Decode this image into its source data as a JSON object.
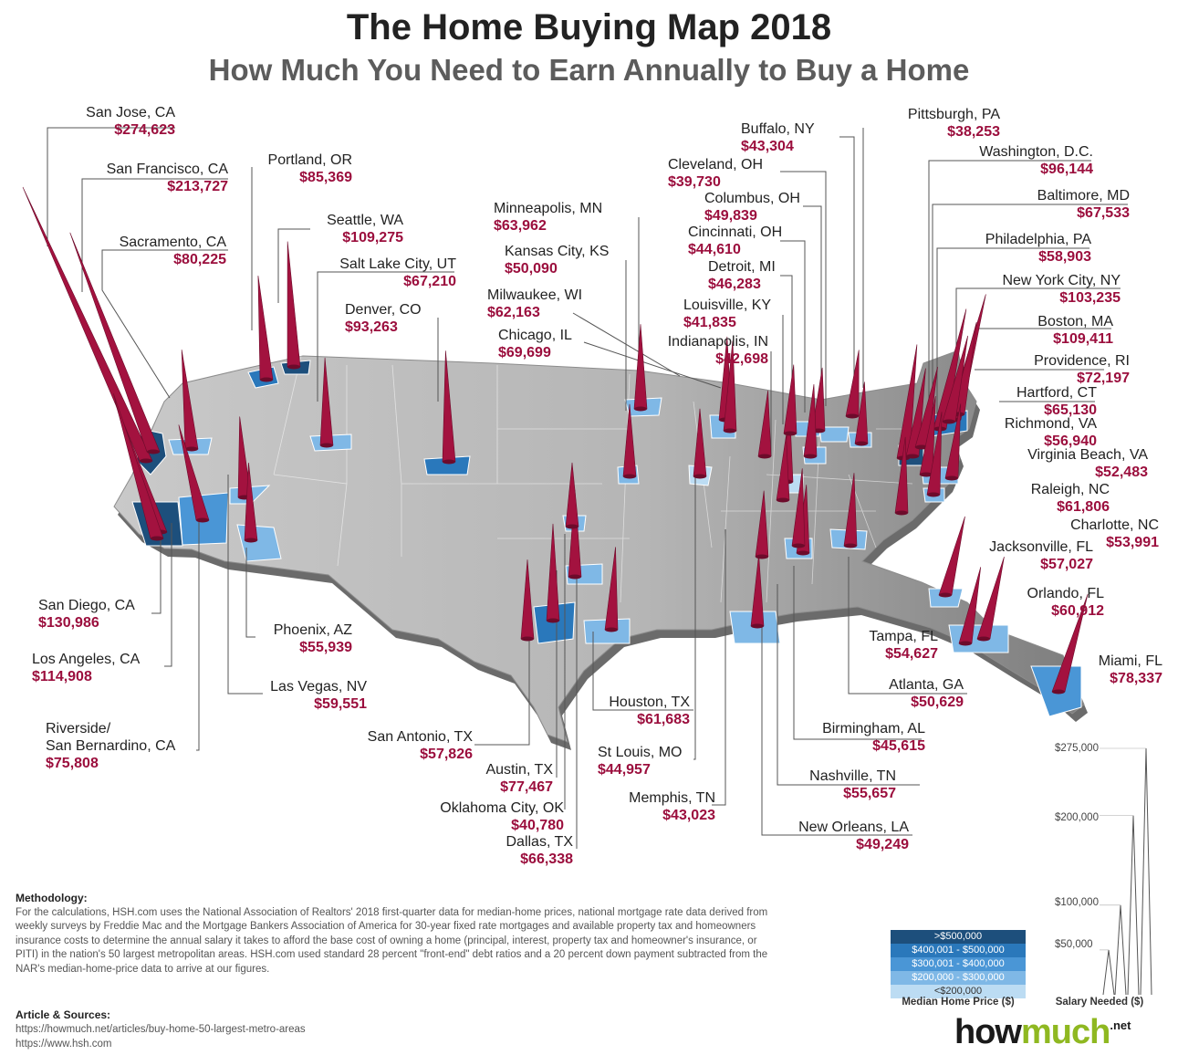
{
  "header": {
    "title": "The Home Buying Map 2018",
    "subtitle": "How Much You Need to Earn Annually to Buy a Home"
  },
  "colors": {
    "salary": "#9b0e3d",
    "spike": "#a3123f",
    "land": "#b9b9b9",
    "tier_over_500k": "#1d4f7c",
    "tier_400k_500k": "#2a78bb",
    "tier_300k_400k": "#4a96d6",
    "tier_200k_300k": "#7fb8e6",
    "tier_under_200k": "#bcdcf3"
  },
  "cities": [
    {
      "name": "San Jose, CA",
      "salary": "$274,623"
    },
    {
      "name": "San Francisco, CA",
      "salary": "$213,727"
    },
    {
      "name": "Sacramento, CA",
      "salary": "$80,225"
    },
    {
      "name": "Portland, OR",
      "salary": "$85,369"
    },
    {
      "name": "Seattle, WA",
      "salary": "$109,275"
    },
    {
      "name": "Salt Lake City, UT",
      "salary": "$67,210"
    },
    {
      "name": "Denver, CO",
      "salary": "$93,263"
    },
    {
      "name": "Minneapolis, MN",
      "salary": "$63,962"
    },
    {
      "name": "Kansas City, KS",
      "salary": "$50,090"
    },
    {
      "name": "Milwaukee, WI",
      "salary": "$62,163"
    },
    {
      "name": "Chicago, IL",
      "salary": "$69,699"
    },
    {
      "name": "Buffalo, NY",
      "salary": "$43,304"
    },
    {
      "name": "Cleveland, OH",
      "salary": "$39,730"
    },
    {
      "name": "Columbus, OH",
      "salary": "$49,839"
    },
    {
      "name": "Cincinnati, OH",
      "salary": "$44,610"
    },
    {
      "name": "Detroit, MI",
      "salary": "$46,283"
    },
    {
      "name": "Louisville, KY",
      "salary": "$41,835"
    },
    {
      "name": "Indianapolis, IN",
      "salary": "$42,698"
    },
    {
      "name": "Pittsburgh, PA",
      "salary": "$38,253"
    },
    {
      "name": "Washington, D.C.",
      "salary": "$96,144"
    },
    {
      "name": "Baltimore, MD",
      "salary": "$67,533"
    },
    {
      "name": "Philadelphia, PA",
      "salary": "$58,903"
    },
    {
      "name": "New York City, NY",
      "salary": "$103,235"
    },
    {
      "name": "Boston, MA",
      "salary": "$109,411"
    },
    {
      "name": "Providence, RI",
      "salary": "$72,197"
    },
    {
      "name": "Hartford, CT",
      "salary": "$65,130"
    },
    {
      "name": "Richmond, VA",
      "salary": "$56,940"
    },
    {
      "name": "Virginia Beach, VA",
      "salary": "$52,483"
    },
    {
      "name": "Raleigh, NC",
      "salary": "$61,806"
    },
    {
      "name": "Charlotte, NC",
      "salary": "$53,991"
    },
    {
      "name": "Jacksonville, FL",
      "salary": "$57,027"
    },
    {
      "name": "Orlando, FL",
      "salary": "$60,912"
    },
    {
      "name": "Tampa, FL",
      "salary": "$54,627"
    },
    {
      "name": "Miami, FL",
      "salary": "$78,337"
    },
    {
      "name": "Atlanta, GA",
      "salary": "$50,629"
    },
    {
      "name": "Birmingham, AL",
      "salary": "$45,615"
    },
    {
      "name": "Nashville, TN",
      "salary": "$55,657"
    },
    {
      "name": "New Orleans, LA",
      "salary": "$49,249"
    },
    {
      "name": "Memphis, TN",
      "salary": "$43,023"
    },
    {
      "name": "St Louis, MO",
      "salary": "$44,957"
    },
    {
      "name": "Houston, TX",
      "salary": "$61,683"
    },
    {
      "name": "Dallas, TX",
      "salary": "$66,338"
    },
    {
      "name": "Oklahoma City, OK",
      "salary": "$40,780"
    },
    {
      "name": "Austin, TX",
      "salary": "$77,467"
    },
    {
      "name": "San Antonio, TX",
      "salary": "$57,826"
    },
    {
      "name": "Las Vegas, NV",
      "salary": "$59,551"
    },
    {
      "name": "Phoenix, AZ",
      "salary": "$55,939"
    },
    {
      "name": "Riverside/\nSan Bernardino, CA",
      "salary": "$75,808"
    },
    {
      "name": "Los Angeles, CA",
      "salary": "$114,908"
    },
    {
      "name": "San Diego, CA",
      "salary": "$130,986"
    }
  ],
  "methodology": {
    "heading": "Methodology:",
    "text": "For the calculations, HSH.com uses the National Association of Realtors' 2018 first-quarter data for median-home prices, national mortgage rate data derived from weekly surveys by Freddie Mac and the Mortgage Bankers Association of America for 30-year fixed rate mortgages and available property tax and homeowners insurance costs to determine the annual salary it takes to afford the base cost of owning a home (principal, interest, property tax and homeowner's insurance, or PITI) in the nation's 50 largest metropolitan areas. HSH.com used standard 28 percent \"front-end\" debt ratios and a 20 percent down payment subtracted from the NAR's median-home-price data to arrive at our figures."
  },
  "sources": {
    "heading": "Article & Sources:",
    "links": [
      "https://howmuch.net/articles/buy-home-50-largest-metro-areas",
      "https://www.hsh.com"
    ]
  },
  "legend": {
    "title": "Median Home Price ($)",
    "tiers": [
      ">$500,000",
      "$400,001 - $500,000",
      "$300,001 - $400,000",
      "$200,000 - $300,000",
      "<$200,000"
    ]
  },
  "salary_scale": {
    "title": "Salary Needed ($)",
    "ticks": [
      "$275,000",
      "$200,000",
      "$100,000",
      "$50,000"
    ]
  },
  "logo": {
    "main": "how",
    "accent": "much",
    "suffix": ".net"
  }
}
